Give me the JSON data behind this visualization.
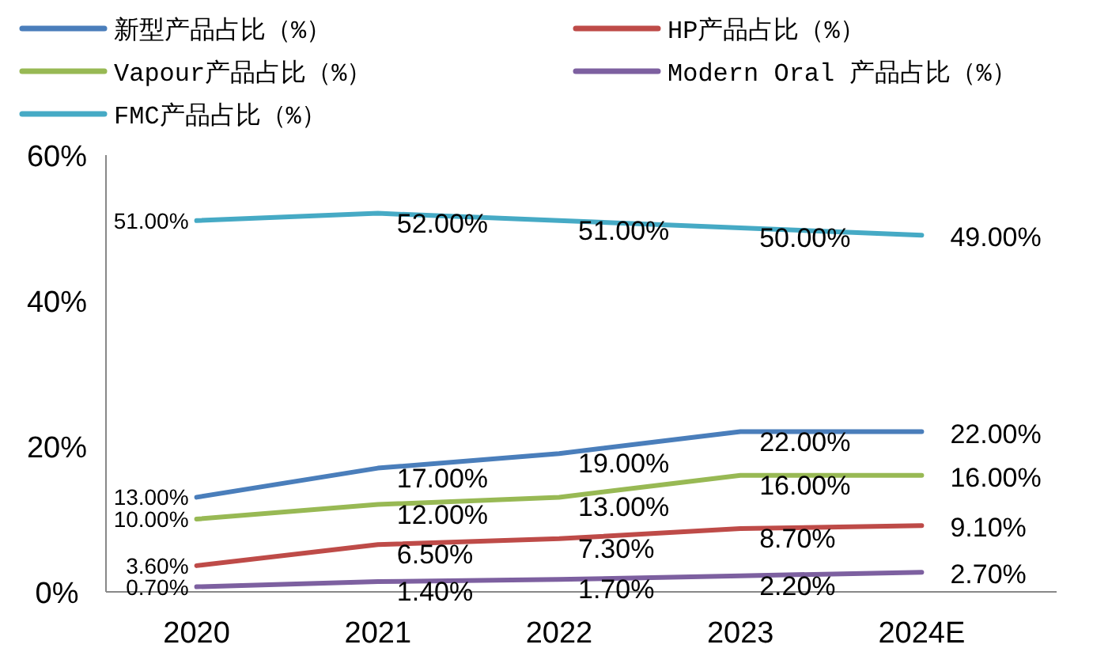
{
  "chart_data": {
    "type": "line",
    "categories": [
      "2020",
      "2021",
      "2022",
      "2023",
      "2024E"
    ],
    "ylim": [
      0,
      60
    ],
    "yticks": [
      {
        "value": 0,
        "label": "0%"
      },
      {
        "value": 20,
        "label": "20%"
      },
      {
        "value": 40,
        "label": "40%"
      },
      {
        "value": 60,
        "label": "60%"
      }
    ],
    "grid": false,
    "legend": "top",
    "marker": "none",
    "line_style": "solid",
    "series": [
      {
        "name": "新型产品占比（%）",
        "color": "#4a7ebb",
        "values": [
          13,
          17,
          19,
          22,
          22
        ],
        "value_labels": [
          "13.00%",
          "17.00%",
          "19.00%",
          "22.00%",
          "22.00%"
        ]
      },
      {
        "name": "HP产品占比（%）",
        "color": "#be4b48",
        "values": [
          3.6,
          6.5,
          7.3,
          8.7,
          9.1
        ],
        "value_labels": [
          "3.60%",
          "6.50%",
          "7.30%",
          "8.70%",
          "9.10%"
        ]
      },
      {
        "name": "Vapour产品占比（%）",
        "color": "#98b954",
        "values": [
          10,
          12,
          13,
          16,
          16
        ],
        "value_labels": [
          "10.00%",
          "12.00%",
          "13.00%",
          "16.00%",
          "16.00%"
        ]
      },
      {
        "name": "Modern Oral 产品占比（%）",
        "color": "#7d60a0",
        "values": [
          0.7,
          1.4,
          1.7,
          2.2,
          2.7
        ],
        "value_labels": [
          "0.70%",
          "1.40%",
          "1.70%",
          "2.20%",
          "2.70%"
        ]
      },
      {
        "name": "FMC产品占比（%）",
        "color": "#46aac5",
        "values": [
          51,
          52,
          51,
          50,
          49
        ],
        "value_labels": [
          "51.00%",
          "52.00%",
          "51.00%",
          "50.00%",
          "49.00%"
        ]
      }
    ]
  }
}
